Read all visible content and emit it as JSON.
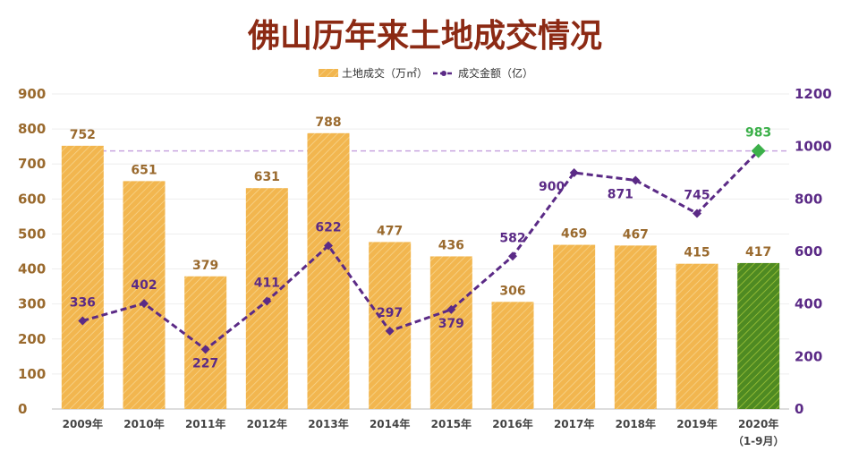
{
  "chart_data": {
    "type": "bar+line",
    "title": "佛山历年来土地成交情况",
    "categories": [
      "2009年",
      "2010年",
      "2011年",
      "2012年",
      "2013年",
      "2014年",
      "2015年",
      "2016年",
      "2017年",
      "2018年",
      "2019年",
      "2020年"
    ],
    "category_sublabels": {
      "11": "（1-9月）"
    },
    "series": [
      {
        "name": "土地成交（万㎡）",
        "type": "bar",
        "axis": "left",
        "color": "#f2b64f",
        "highlight_color": "#4e8a22",
        "highlight_index": 11,
        "values": [
          752,
          651,
          379,
          631,
          788,
          477,
          436,
          306,
          469,
          467,
          415,
          417
        ]
      },
      {
        "name": "成交金额（亿）",
        "type": "line",
        "axis": "right",
        "color": "#5b2a86",
        "highlight_color": "#3cb04a",
        "highlight_index": 11,
        "values": [
          336,
          402,
          227,
          411,
          622,
          297,
          379,
          582,
          900,
          871,
          745,
          983
        ]
      }
    ],
    "left_axis": {
      "ylim": [
        0,
        900
      ],
      "ticks": [
        0,
        100,
        200,
        300,
        400,
        500,
        600,
        700,
        800,
        900
      ]
    },
    "right_axis": {
      "ylim": [
        0,
        1200
      ],
      "ticks": [
        0,
        200,
        400,
        600,
        800,
        1000,
        1200
      ]
    },
    "reference_line": {
      "axis": "right",
      "value": 983
    },
    "legend": "top-center",
    "grid": true
  }
}
